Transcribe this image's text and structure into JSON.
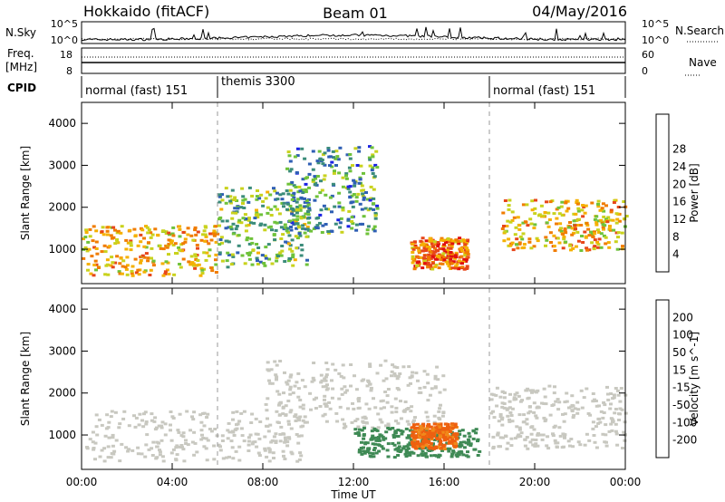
{
  "header": {
    "station": "Hokkaido (fitACF)",
    "beam": "Beam 01",
    "date": "04/May/2016"
  },
  "strip_panels": {
    "nsky_label": "N.Sky",
    "nsky_ticks": [
      "10^5",
      "10^0"
    ],
    "nsearch_label": "N.Search",
    "nsearch_ticks": [
      "10^5",
      "10^0"
    ],
    "freq_label": "Freq.",
    "freq_unit": "[MHz]",
    "freq_ticks": [
      "18",
      "8"
    ],
    "nave_label": "Nave",
    "nave_ticks": [
      "60",
      "0"
    ],
    "cpid_label": "CPID",
    "cpid_segments": [
      {
        "label": "normal (fast) 151",
        "start_hour": 0,
        "end_hour": 6
      },
      {
        "label": "themis 3300",
        "start_hour": 6,
        "end_hour": 18
      },
      {
        "label": "normal (fast) 151",
        "start_hour": 18,
        "end_hour": 24
      }
    ]
  },
  "axes": {
    "x_label": "Time UT",
    "x_ticks": [
      "00:00",
      "04:00",
      "08:00",
      "12:00",
      "16:00",
      "20:00",
      "00:00"
    ],
    "y_label": "Slant Range [km]",
    "y_ticks": [
      "1000",
      "2000",
      "3000",
      "4000"
    ]
  },
  "chart_data": [
    {
      "type": "heatmap",
      "panel": "power",
      "x_range_hours": [
        0,
        24
      ],
      "y_range_km": [
        180,
        4500
      ],
      "colorbar_label": "Power [dB]",
      "colorbar_ticks": [
        "4",
        "8",
        "12",
        "16",
        "20",
        "24",
        "28"
      ],
      "colorbar_colors": [
        "#1b22e3",
        "#2f5fb4",
        "#3b8c7a",
        "#6fc23a",
        "#c9d21d",
        "#f5b000",
        "#f07c00",
        "#e7461a",
        "#e01010"
      ],
      "regions": [
        {
          "x": [
            0,
            6
          ],
          "y": [
            400,
            1600
          ],
          "value": 22
        },
        {
          "x": [
            6,
            10
          ],
          "y": [
            600,
            2500
          ],
          "value": 14
        },
        {
          "x": [
            9,
            13
          ],
          "y": [
            1400,
            3500
          ],
          "value": 12
        },
        {
          "x": [
            14.5,
            17
          ],
          "y": [
            550,
            1300
          ],
          "value": 26
        },
        {
          "x": [
            18.5,
            24
          ],
          "y": [
            1000,
            2200
          ],
          "value": 22
        }
      ]
    },
    {
      "type": "heatmap",
      "panel": "velocity",
      "x_range_hours": [
        0,
        24
      ],
      "y_range_km": [
        180,
        4500
      ],
      "colorbar_label": "Velocity [m s^-1]",
      "colorbar_ticks": [
        "200",
        "100",
        "50",
        "15",
        "-15",
        "-50",
        "-100",
        "-200"
      ],
      "colorbar_colors": [
        "#2a34c8",
        "#3c6f9f",
        "#3f8a55",
        "#5fc13e",
        "#c8c8c0",
        "#f0b43a",
        "#f08a1a",
        "#ee6010",
        "#e01010"
      ],
      "regions": [
        {
          "x": [
            0,
            10
          ],
          "y": [
            400,
            1600
          ],
          "value": 0
        },
        {
          "x": [
            8,
            16
          ],
          "y": [
            1200,
            2800
          ],
          "value": 0
        },
        {
          "x": [
            12,
            17.5
          ],
          "y": [
            500,
            1200
          ],
          "value": 60
        },
        {
          "x": [
            14.5,
            16.5
          ],
          "y": [
            700,
            1300
          ],
          "value": -80
        },
        {
          "x": [
            18,
            24
          ],
          "y": [
            700,
            2200
          ],
          "value": 0
        }
      ]
    }
  ]
}
